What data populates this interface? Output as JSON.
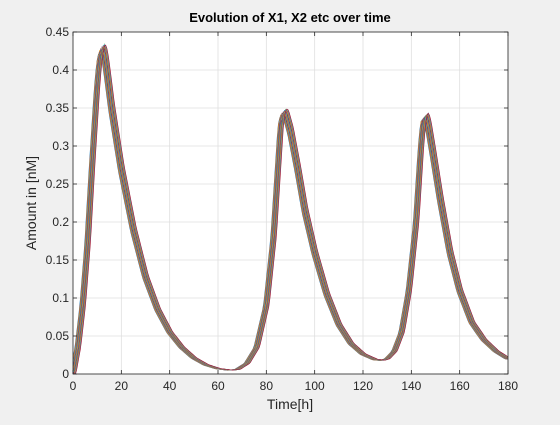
{
  "chart_data": {
    "type": "line",
    "title": "Evolution of X1, X2 etc over time",
    "xlabel": "Time[h]",
    "ylabel": "Amount in [nM]",
    "xlim": [
      0,
      180
    ],
    "ylim": [
      0,
      0.45
    ],
    "grid": true,
    "x_ticks": [
      0,
      20,
      40,
      60,
      80,
      100,
      120,
      140,
      160,
      180
    ],
    "x_tick_labels": [
      "0",
      "20",
      "40",
      "60",
      "80",
      "100",
      "120",
      "140",
      "160",
      "180"
    ],
    "y_ticks": [
      0,
      0.05,
      0.1,
      0.15,
      0.2,
      0.25,
      0.3,
      0.35,
      0.4,
      0.45
    ],
    "y_tick_labels": [
      "0",
      "0.05",
      "0.1",
      "0.15",
      "0.2",
      "0.25",
      "0.3",
      "0.35",
      "0.4",
      "0.45"
    ],
    "series_colors": [
      "#0072bd",
      "#d95319",
      "#edb120",
      "#7e2f8e",
      "#77ac30",
      "#4dbeee",
      "#a2142f"
    ],
    "series_count": 21,
    "series_shift_step": 0.12,
    "series_scale_step": 0.0012,
    "base_curve": [
      [
        0,
        0
      ],
      [
        2,
        0.035
      ],
      [
        4,
        0.09
      ],
      [
        6,
        0.17
      ],
      [
        8,
        0.28
      ],
      [
        10,
        0.38
      ],
      [
        11,
        0.415
      ],
      [
        12,
        0.43
      ],
      [
        13,
        0.422
      ],
      [
        14,
        0.4
      ],
      [
        16,
        0.35
      ],
      [
        20,
        0.27
      ],
      [
        25,
        0.19
      ],
      [
        30,
        0.128
      ],
      [
        35,
        0.085
      ],
      [
        40,
        0.055
      ],
      [
        45,
        0.035
      ],
      [
        50,
        0.021
      ],
      [
        55,
        0.012
      ],
      [
        60,
        0.007
      ],
      [
        65,
        0.005
      ],
      [
        68,
        0.006
      ],
      [
        72,
        0.014
      ],
      [
        76,
        0.035
      ],
      [
        80,
        0.09
      ],
      [
        83,
        0.18
      ],
      [
        85,
        0.28
      ],
      [
        86,
        0.33
      ],
      [
        87,
        0.345
      ],
      [
        88,
        0.343
      ],
      [
        90,
        0.32
      ],
      [
        93,
        0.27
      ],
      [
        96,
        0.215
      ],
      [
        100,
        0.16
      ],
      [
        105,
        0.105
      ],
      [
        110,
        0.065
      ],
      [
        115,
        0.04
      ],
      [
        120,
        0.026
      ],
      [
        125,
        0.019
      ],
      [
        128,
        0.018
      ],
      [
        130,
        0.02
      ],
      [
        133,
        0.03
      ],
      [
        136,
        0.055
      ],
      [
        139,
        0.11
      ],
      [
        142,
        0.2
      ],
      [
        144,
        0.3
      ],
      [
        145,
        0.335
      ],
      [
        146,
        0.34
      ],
      [
        147,
        0.328
      ],
      [
        149,
        0.29
      ],
      [
        152,
        0.23
      ],
      [
        156,
        0.16
      ],
      [
        160,
        0.11
      ],
      [
        165,
        0.068
      ],
      [
        170,
        0.045
      ],
      [
        175,
        0.03
      ],
      [
        180,
        0.02
      ]
    ]
  }
}
